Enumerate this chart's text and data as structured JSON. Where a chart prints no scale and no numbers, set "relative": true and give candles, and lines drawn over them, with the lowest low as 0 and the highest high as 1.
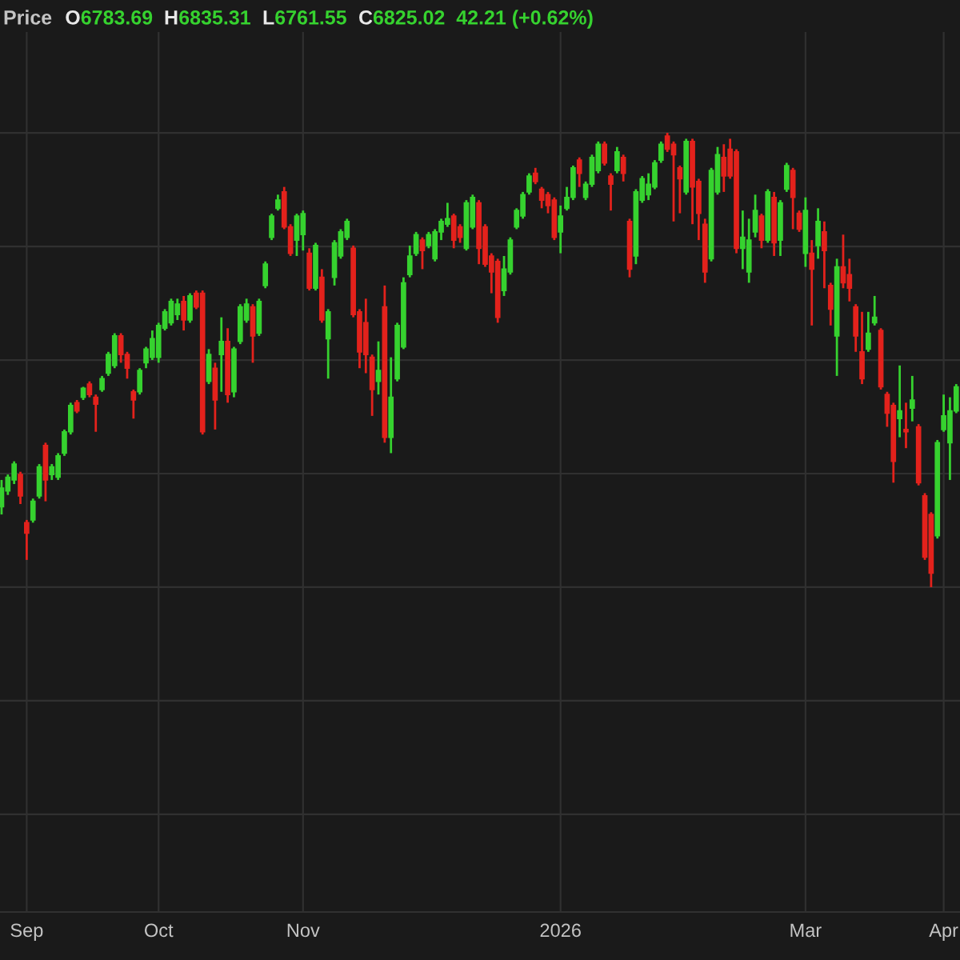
{
  "chart_data": {
    "type": "candlestick",
    "title": "Price",
    "annotations": [
      "O",
      "6783.69",
      "H",
      "6835.31",
      "L",
      "6761.55",
      "C",
      "6825.02",
      "42.21 (+0.62%)"
    ],
    "relative": true,
    "grid": true,
    "tick_labels": "x",
    "categories": [
      null,
      null,
      null,
      null,
      "Sep",
      null,
      null,
      null,
      null,
      null,
      null,
      null,
      null,
      null,
      null,
      null,
      null,
      null,
      null,
      null,
      null,
      null,
      null,
      null,
      null,
      "Oct",
      null,
      null,
      null,
      null,
      null,
      null,
      null,
      null,
      null,
      null,
      null,
      null,
      null,
      null,
      null,
      null,
      null,
      null,
      null,
      null,
      null,
      null,
      "Nov",
      null,
      null,
      null,
      null,
      null,
      null,
      null,
      null,
      null,
      null,
      null,
      null,
      null,
      null,
      null,
      null,
      null,
      null,
      null,
      null,
      null,
      null,
      null,
      null,
      null,
      null,
      null,
      null,
      null,
      null,
      null,
      null,
      null,
      null,
      null,
      null,
      null,
      null,
      null,
      null,
      "2026",
      null,
      null,
      null,
      null,
      null,
      null,
      null,
      null,
      null,
      null,
      null,
      null,
      null,
      null,
      null,
      null,
      null,
      null,
      null,
      null,
      null,
      null,
      null,
      null,
      null,
      null,
      null,
      null,
      null,
      null,
      null,
      null,
      null,
      null,
      null,
      null,
      null,
      null,
      "Mar",
      null,
      null,
      null,
      null,
      null,
      null,
      null,
      null,
      null,
      null,
      null,
      null,
      null,
      null,
      null,
      null,
      null,
      null,
      null,
      null,
      null,
      "Apr",
      null,
      null
    ],
    "ohlc": [
      [
        0.177,
        0.236,
        0.16,
        0.218
      ],
      [
        0.212,
        0.248,
        0.203,
        0.242
      ],
      [
        0.236,
        0.277,
        0.227,
        0.271
      ],
      [
        0.248,
        0.254,
        0.183,
        0.201
      ],
      [
        0.142,
        0.148,
        0.06,
        0.119
      ],
      [
        0.148,
        0.195,
        0.142,
        0.189
      ],
      [
        0.201,
        0.271,
        0.195,
        0.265
      ],
      [
        0.312,
        0.318,
        0.189,
        0.236
      ],
      [
        0.248,
        0.271,
        0.236,
        0.265
      ],
      [
        0.242,
        0.295,
        0.236,
        0.289
      ],
      [
        0.295,
        0.347,
        0.289,
        0.342
      ],
      [
        0.342,
        0.406,
        0.336,
        0.4
      ],
      [
        0.406,
        0.412,
        0.383,
        0.388
      ],
      [
        0.418,
        0.441,
        0.412,
        0.438
      ],
      [
        0.447,
        0.453,
        0.418,
        0.424
      ],
      [
        0.418,
        0.424,
        0.342,
        0.403
      ],
      [
        0.435,
        0.465,
        0.43,
        0.459
      ],
      [
        0.471,
        0.518,
        0.465,
        0.512
      ],
      [
        0.488,
        0.559,
        0.482,
        0.553
      ],
      [
        0.553,
        0.559,
        0.494,
        0.512
      ],
      [
        0.512,
        0.518,
        0.459,
        0.482
      ],
      [
        0.43,
        0.435,
        0.371,
        0.412
      ],
      [
        0.43,
        0.482,
        0.424,
        0.477
      ],
      [
        0.494,
        0.529,
        0.482,
        0.524
      ],
      [
        0.506,
        0.565,
        0.5,
        0.547
      ],
      [
        0.506,
        0.582,
        0.494,
        0.576
      ],
      [
        0.57,
        0.612,
        0.565,
        0.606
      ],
      [
        0.582,
        0.635,
        0.576,
        0.629
      ],
      [
        0.6,
        0.635,
        0.588,
        0.623
      ],
      [
        0.629,
        0.641,
        0.565,
        0.588
      ],
      [
        0.588,
        0.647,
        0.582,
        0.641
      ],
      [
        0.647,
        0.653,
        0.612,
        0.617
      ],
      [
        0.647,
        0.653,
        0.336,
        0.342
      ],
      [
        0.453,
        0.524,
        0.447,
        0.512
      ],
      [
        0.482,
        0.494,
        0.347,
        0.412
      ],
      [
        0.512,
        0.594,
        0.43,
        0.541
      ],
      [
        0.541,
        0.57,
        0.406,
        0.424
      ],
      [
        0.43,
        0.529,
        0.418,
        0.524
      ],
      [
        0.541,
        0.623,
        0.535,
        0.617
      ],
      [
        0.588,
        0.635,
        0.582,
        0.623
      ],
      [
        0.617,
        0.623,
        0.494,
        0.553
      ],
      [
        0.559,
        0.635,
        0.553,
        0.629
      ],
      [
        0.664,
        0.717,
        0.658,
        0.711
      ],
      [
        0.77,
        0.822,
        0.764,
        0.817
      ],
      [
        0.834,
        0.864,
        0.829,
        0.852
      ],
      [
        0.87,
        0.881,
        0.788,
        0.793
      ],
      [
        0.793,
        0.799,
        0.729,
        0.735
      ],
      [
        0.764,
        0.822,
        0.729,
        0.817
      ],
      [
        0.776,
        0.829,
        0.741,
        0.822
      ],
      [
        0.735,
        0.746,
        0.653,
        0.658
      ],
      [
        0.658,
        0.758,
        0.653,
        0.752
      ],
      [
        0.682,
        0.7,
        0.582,
        0.588
      ],
      [
        0.547,
        0.612,
        0.459,
        0.606
      ],
      [
        0.682,
        0.764,
        0.664,
        0.758
      ],
      [
        0.729,
        0.788,
        0.723,
        0.782
      ],
      [
        0.77,
        0.811,
        0.764,
        0.805
      ],
      [
        0.746,
        0.752,
        0.594,
        0.6
      ],
      [
        0.606,
        0.612,
        0.482,
        0.518
      ],
      [
        0.582,
        0.635,
        0.471,
        0.512
      ],
      [
        0.506,
        0.512,
        0.377,
        0.435
      ],
      [
        0.453,
        0.541,
        0.424,
        0.477
      ],
      [
        0.617,
        0.664,
        0.318,
        0.33
      ],
      [
        0.33,
        0.506,
        0.295,
        0.418
      ],
      [
        0.459,
        0.582,
        0.453,
        0.576
      ],
      [
        0.529,
        0.682,
        0.524,
        0.67
      ],
      [
        0.688,
        0.752,
        0.682,
        0.729
      ],
      [
        0.735,
        0.782,
        0.729,
        0.776
      ],
      [
        0.764,
        0.77,
        0.7,
        0.741
      ],
      [
        0.752,
        0.782,
        0.746,
        0.776
      ],
      [
        0.723,
        0.788,
        0.717,
        0.782
      ],
      [
        0.782,
        0.811,
        0.764,
        0.805
      ],
      [
        0.799,
        0.846,
        0.793,
        0.811
      ],
      [
        0.817,
        0.822,
        0.746,
        0.764
      ],
      [
        0.793,
        0.799,
        0.758,
        0.77
      ],
      [
        0.746,
        0.852,
        0.741,
        0.846
      ],
      [
        0.793,
        0.864,
        0.788,
        0.858
      ],
      [
        0.846,
        0.852,
        0.711,
        0.746
      ],
      [
        0.793,
        0.799,
        0.705,
        0.711
      ],
      [
        0.729,
        0.735,
        0.647,
        0.694
      ],
      [
        0.717,
        0.723,
        0.582,
        0.594
      ],
      [
        0.653,
        0.729,
        0.641,
        0.7
      ],
      [
        0.694,
        0.77,
        0.688,
        0.764
      ],
      [
        0.793,
        0.834,
        0.788,
        0.829
      ],
      [
        0.817,
        0.87,
        0.811,
        0.864
      ],
      [
        0.87,
        0.911,
        0.864,
        0.905
      ],
      [
        0.911,
        0.923,
        0.887,
        0.893
      ],
      [
        0.876,
        0.881,
        0.834,
        0.852
      ],
      [
        0.864,
        0.87,
        0.823,
        0.84
      ],
      [
        0.852,
        0.858,
        0.764,
        0.77
      ],
      [
        0.782,
        0.84,
        0.735,
        0.817
      ],
      [
        0.834,
        0.881,
        0.829,
        0.858
      ],
      [
        0.858,
        0.928,
        0.852,
        0.923
      ],
      [
        0.94,
        0.946,
        0.881,
        0.911
      ],
      [
        0.858,
        0.893,
        0.852,
        0.887
      ],
      [
        0.887,
        0.952,
        0.881,
        0.946
      ],
      [
        0.917,
        0.981,
        0.911,
        0.975
      ],
      [
        0.975,
        0.981,
        0.928,
        0.934
      ],
      [
        0.905,
        0.911,
        0.829,
        0.887
      ],
      [
        0.917,
        0.969,
        0.911,
        0.958
      ],
      [
        0.946,
        0.952,
        0.893,
        0.911
      ],
      [
        0.805,
        0.811,
        0.682,
        0.7
      ],
      [
        0.729,
        0.876,
        0.711,
        0.87
      ],
      [
        0.852,
        0.905,
        0.846,
        0.899
      ],
      [
        0.864,
        0.911,
        0.852,
        0.887
      ],
      [
        0.881,
        0.94,
        0.876,
        0.934
      ],
      [
        0.94,
        0.981,
        0.934,
        0.975
      ],
      [
        0.993,
        1,
        0.958,
        0.964
      ],
      [
        0.975,
        0.981,
        0.805,
        0.952
      ],
      [
        0.923,
        0.928,
        0.823,
        0.899
      ],
      [
        0.87,
        0.987,
        0.864,
        0.981
      ],
      [
        0.981,
        0.987,
        0.799,
        0.881
      ],
      [
        0.893,
        0.899,
        0.764,
        0.823
      ],
      [
        0.799,
        0.811,
        0.67,
        0.694
      ],
      [
        0.723,
        0.923,
        0.717,
        0.917
      ],
      [
        0.87,
        0.969,
        0.864,
        0.952
      ],
      [
        0.946,
        0.975,
        0.87,
        0.905
      ],
      [
        0.964,
        0.987,
        0.899,
        0.905
      ],
      [
        0.958,
        0.964,
        0.735,
        0.746
      ],
      [
        0.746,
        0.829,
        0.7,
        0.77
      ],
      [
        0.694,
        0.811,
        0.67,
        0.764
      ],
      [
        0.782,
        0.864,
        0.77,
        0.829
      ],
      [
        0.817,
        0.822,
        0.746,
        0.764
      ],
      [
        0.764,
        0.876,
        0.758,
        0.87
      ],
      [
        0.858,
        0.87,
        0.729,
        0.758
      ],
      [
        0.764,
        0.852,
        0.729,
        0.846
      ],
      [
        0.876,
        0.934,
        0.87,
        0.928
      ],
      [
        0.917,
        0.923,
        0.788,
        0.858
      ],
      [
        0.823,
        0.829,
        0.782,
        0.788
      ],
      [
        0.735,
        0.858,
        0.705,
        0.829
      ],
      [
        0.735,
        0.764,
        0.576,
        0.7
      ],
      [
        0.752,
        0.834,
        0.723,
        0.805
      ],
      [
        0.782,
        0.805,
        0.658,
        0.741
      ],
      [
        0.664,
        0.67,
        0.576,
        0.612
      ],
      [
        0.553,
        0.723,
        0.465,
        0.705
      ],
      [
        0.705,
        0.776,
        0.658,
        0.67
      ],
      [
        0.688,
        0.723,
        0.629,
        0.658
      ],
      [
        0.617,
        0.623,
        0.518,
        0.553
      ],
      [
        0.518,
        0.606,
        0.447,
        0.459
      ],
      [
        0.524,
        0.606,
        0.518,
        0.559
      ],
      [
        0.582,
        0.641,
        0.576,
        0.594
      ],
      [
        0.565,
        0.57,
        0.435,
        0.441
      ],
      [
        0.424,
        0.43,
        0.353,
        0.383
      ],
      [
        0.4,
        0.406,
        0.23,
        0.277
      ],
      [
        0.371,
        0.488,
        0.33,
        0.388
      ],
      [
        0.347,
        0.406,
        0.306,
        0.342
      ],
      [
        0.394,
        0.465,
        0.365,
        0.412
      ],
      [
        0.353,
        0.359,
        0.224,
        0.23
      ],
      [
        0.201,
        0.207,
        0.06,
        0.066
      ],
      [
        0.16,
        0.165,
        0,
        0.031
      ],
      [
        0.113,
        0.324,
        0.107,
        0.318
      ],
      [
        0.347,
        0.424,
        0.342,
        0.377
      ],
      [
        0.318,
        0.418,
        0.236,
        0.388
      ],
      [
        0.388,
        0.447,
        0.383,
        0.441
      ]
    ],
    "colors": [
      "#36d22f",
      "#36d22f",
      "#36d22f",
      "#e3221c",
      "#e3221c",
      "#36d22f",
      "#36d22f",
      "#e3221c",
      "#36d22f",
      "#36d22f",
      "#36d22f",
      "#36d22f",
      "#e3221c",
      "#36d22f",
      "#e3221c",
      "#e3221c",
      "#36d22f",
      "#36d22f",
      "#36d22f",
      "#e3221c",
      "#e3221c",
      "#e3221c",
      "#36d22f",
      "#36d22f",
      "#36d22f",
      "#36d22f",
      "#36d22f",
      "#36d22f",
      "#36d22f",
      "#e3221c",
      "#36d22f",
      "#e3221c",
      "#e3221c",
      "#36d22f",
      "#e3221c",
      "#36d22f",
      "#e3221c",
      "#36d22f",
      "#36d22f",
      "#36d22f",
      "#e3221c",
      "#36d22f",
      "#36d22f",
      "#36d22f",
      "#36d22f",
      "#e3221c",
      "#e3221c",
      "#36d22f",
      "#36d22f",
      "#e3221c",
      "#36d22f",
      "#e3221c",
      "#36d22f",
      "#36d22f",
      "#36d22f",
      "#36d22f",
      "#e3221c",
      "#e3221c",
      "#e3221c",
      "#e3221c",
      "#36d22f",
      "#e3221c",
      "#36d22f",
      "#36d22f",
      "#36d22f",
      "#36d22f",
      "#36d22f",
      "#e3221c",
      "#36d22f",
      "#36d22f",
      "#36d22f",
      "#36d22f",
      "#e3221c",
      "#e3221c",
      "#36d22f",
      "#36d22f",
      "#e3221c",
      "#e3221c",
      "#e3221c",
      "#e3221c",
      "#36d22f",
      "#36d22f",
      "#36d22f",
      "#36d22f",
      "#36d22f",
      "#e3221c",
      "#e3221c",
      "#e3221c",
      "#e3221c",
      "#36d22f",
      "#36d22f",
      "#36d22f",
      "#e3221c",
      "#36d22f",
      "#36d22f",
      "#36d22f",
      "#e3221c",
      "#e3221c",
      "#36d22f",
      "#e3221c",
      "#e3221c",
      "#36d22f",
      "#36d22f",
      "#36d22f",
      "#36d22f",
      "#36d22f",
      "#e3221c",
      "#e3221c",
      "#e3221c",
      "#36d22f",
      "#e3221c",
      "#e3221c",
      "#e3221c",
      "#36d22f",
      "#36d22f",
      "#e3221c",
      "#e3221c",
      "#e3221c",
      "#36d22f",
      "#36d22f",
      "#36d22f",
      "#e3221c",
      "#36d22f",
      "#e3221c",
      "#36d22f",
      "#36d22f",
      "#e3221c",
      "#e3221c",
      "#36d22f",
      "#e3221c",
      "#36d22f",
      "#e3221c",
      "#e3221c",
      "#36d22f",
      "#e3221c",
      "#e3221c",
      "#e3221c",
      "#e3221c",
      "#36d22f",
      "#36d22f",
      "#e3221c",
      "#e3221c",
      "#e3221c",
      "#36d22f",
      "#e3221c",
      "#36d22f",
      "#e3221c",
      "#e3221c",
      "#e3221c",
      "#36d22f",
      "#36d22f",
      "#36d22f",
      "#36d22f"
    ]
  }
}
